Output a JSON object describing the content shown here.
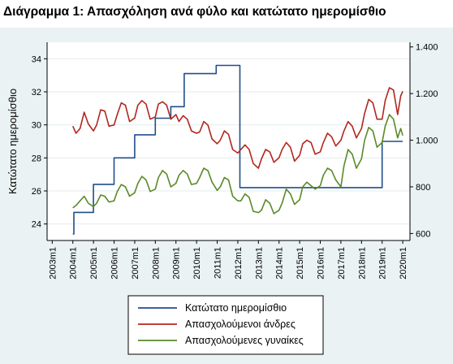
{
  "title": "Διάγραμμα 1: Απασχόληση ανά φύλο και κατώτατο ημερομίσθιο",
  "chart_data": {
    "type": "line",
    "ylabel": "Κατώτατο ημερομίσθιο",
    "y_left": {
      "lim": [
        23,
        35
      ],
      "ticks": [
        "24",
        "26",
        "28",
        "30",
        "32",
        "34"
      ],
      "tick_values": [
        24,
        26,
        28,
        30,
        32,
        34
      ]
    },
    "y_right": {
      "lim": [
        570,
        1420
      ],
      "ticks": [
        "600",
        "800",
        "1.000",
        "1.200",
        "1.400"
      ],
      "tick_values": [
        600,
        800,
        1000,
        1200,
        1400
      ]
    },
    "x_ticks": [
      "2003m1",
      "2004m1",
      "2005m1",
      "2006m1",
      "2007m1",
      "2008m1",
      "2009m1",
      "2010m1",
      "2011m1",
      "2012m1",
      "2013m1",
      "2014m1",
      "2015m1",
      "2016m1",
      "2017m1",
      "2018m1",
      "2019m1",
      "2020m1"
    ],
    "x_tick_values": [
      2003,
      2004,
      2005,
      2006,
      2007,
      2008,
      2009,
      2010,
      2011,
      2012,
      2013,
      2014,
      2015,
      2016,
      2017,
      2018,
      2019,
      2020
    ],
    "xlim": [
      2002.75,
      2020.35
    ],
    "grid": true,
    "legend_position": "bottom",
    "series": [
      {
        "name": "Κατώτατο ημερομίσθιο",
        "axis": "left",
        "color": "#1f4e8c",
        "x": [
          2004.0,
          2004.05,
          2004.05,
          2005.0,
          2005.0,
          2006.0,
          2006.0,
          2007.0,
          2007.0,
          2008.0,
          2008.0,
          2008.75,
          2008.75,
          2009.4,
          2009.4,
          2010.95,
          2010.95,
          2012.1,
          2012.1,
          2019.0,
          2019.0,
          2020.0
        ],
        "y": [
          23.4,
          23.4,
          24.7,
          24.7,
          26.4,
          26.4,
          28.0,
          28.0,
          29.4,
          29.4,
          30.4,
          30.4,
          31.1,
          31.1,
          33.1,
          33.1,
          33.6,
          33.6,
          26.2,
          26.2,
          29.0,
          29.0
        ]
      },
      {
        "name": "Απασχολούμενοι άνδρες",
        "axis": "right",
        "color": "#b3261e",
        "x": [
          2004.0,
          2004.15,
          2004.35,
          2004.55,
          2004.75,
          2005.0,
          2005.15,
          2005.35,
          2005.55,
          2005.75,
          2006.0,
          2006.15,
          2006.35,
          2006.55,
          2006.75,
          2007.0,
          2007.15,
          2007.35,
          2007.55,
          2007.75,
          2008.0,
          2008.15,
          2008.35,
          2008.55,
          2008.75,
          2009.0,
          2009.15,
          2009.35,
          2009.55,
          2009.75,
          2010.0,
          2010.15,
          2010.35,
          2010.55,
          2010.75,
          2011.0,
          2011.15,
          2011.35,
          2011.55,
          2011.75,
          2012.0,
          2012.15,
          2012.35,
          2012.55,
          2012.75,
          2013.0,
          2013.15,
          2013.35,
          2013.55,
          2013.75,
          2014.0,
          2014.15,
          2014.35,
          2014.55,
          2014.75,
          2015.0,
          2015.15,
          2015.35,
          2015.55,
          2015.75,
          2016.0,
          2016.15,
          2016.35,
          2016.55,
          2016.75,
          2017.0,
          2017.15,
          2017.35,
          2017.55,
          2017.75,
          2018.0,
          2018.15,
          2018.35,
          2018.55,
          2018.75,
          2019.0,
          2019.15,
          2019.35,
          2019.55,
          2019.75,
          2019.9,
          2020.0
        ],
        "y": [
          1060,
          1030,
          1050,
          1120,
          1070,
          1040,
          1065,
          1130,
          1125,
          1060,
          1065,
          1110,
          1160,
          1150,
          1080,
          1095,
          1150,
          1170,
          1155,
          1090,
          1100,
          1155,
          1165,
          1150,
          1090,
          1110,
          1080,
          1105,
          1090,
          1040,
          1030,
          1035,
          1080,
          1065,
          1005,
          985,
          1000,
          1040,
          1025,
          960,
          945,
          960,
          980,
          960,
          900,
          880,
          920,
          960,
          950,
          905,
          925,
          960,
          990,
          970,
          910,
          935,
          985,
          1000,
          990,
          940,
          950,
          990,
          1030,
          1015,
          975,
          1000,
          1040,
          1080,
          1060,
          1010,
          1050,
          1115,
          1175,
          1160,
          1090,
          1090,
          1170,
          1225,
          1215,
          1110,
          1190,
          1210
        ]
      },
      {
        "name": "Απασχολούμενες γυναίκες",
        "axis": "right",
        "color": "#5a8a28",
        "x": [
          2004.0,
          2004.15,
          2004.35,
          2004.55,
          2004.75,
          2005.0,
          2005.15,
          2005.35,
          2005.55,
          2005.75,
          2006.0,
          2006.15,
          2006.35,
          2006.55,
          2006.75,
          2007.0,
          2007.15,
          2007.35,
          2007.55,
          2007.75,
          2008.0,
          2008.15,
          2008.35,
          2008.55,
          2008.75,
          2009.0,
          2009.15,
          2009.35,
          2009.55,
          2009.75,
          2010.0,
          2010.15,
          2010.35,
          2010.55,
          2010.75,
          2011.0,
          2011.15,
          2011.35,
          2011.55,
          2011.75,
          2012.0,
          2012.15,
          2012.35,
          2012.55,
          2012.75,
          2013.0,
          2013.15,
          2013.35,
          2013.55,
          2013.75,
          2014.0,
          2014.15,
          2014.35,
          2014.55,
          2014.75,
          2015.0,
          2015.15,
          2015.35,
          2015.55,
          2015.75,
          2016.0,
          2016.15,
          2016.35,
          2016.55,
          2016.75,
          2017.0,
          2017.15,
          2017.35,
          2017.55,
          2017.75,
          2018.0,
          2018.15,
          2018.35,
          2018.55,
          2018.75,
          2019.0,
          2019.15,
          2019.35,
          2019.55,
          2019.75,
          2019.9,
          2020.0
        ],
        "y": [
          710,
          720,
          740,
          760,
          730,
          715,
          730,
          765,
          760,
          735,
          740,
          780,
          810,
          800,
          760,
          775,
          815,
          845,
          830,
          780,
          790,
          840,
          870,
          855,
          800,
          815,
          850,
          870,
          855,
          810,
          815,
          840,
          880,
          870,
          820,
          785,
          800,
          840,
          830,
          760,
          740,
          740,
          770,
          755,
          695,
          690,
          700,
          745,
          730,
          685,
          700,
          730,
          790,
          770,
          725,
          745,
          800,
          820,
          805,
          790,
          805,
          850,
          880,
          870,
          830,
          800,
          890,
          960,
          940,
          880,
          920,
          1000,
          1055,
          1040,
          970,
          990,
          1060,
          1110,
          1090,
          1010,
          1050,
          1020
        ]
      }
    ]
  }
}
